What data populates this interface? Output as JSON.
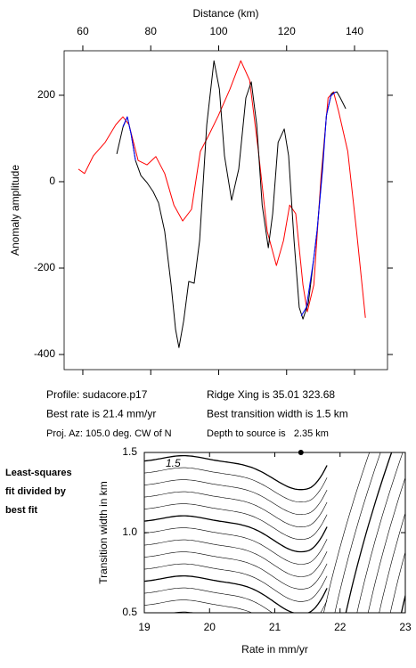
{
  "chart_data": [
    {
      "type": "line",
      "x_label": "Distance (km)",
      "y_label": "Anomaly amplitude",
      "xlim": [
        54.5,
        149.7
      ],
      "ylim": [
        -435,
        303
      ],
      "xticks": [
        60,
        80,
        100,
        120,
        140
      ],
      "yticks": [
        -400,
        -200,
        0,
        200
      ],
      "series": [
        {
          "color": "#ff0000",
          "x": [
            58.7,
            60.5,
            63.1,
            66.6,
            69.7,
            71.8,
            73.6,
            76.3,
            78.9,
            81.5,
            84.1,
            86.8,
            89.4,
            92.0,
            94.6,
            97.3,
            99.9,
            103.3,
            106.5,
            109.1,
            111.7,
            114.3,
            117.0,
            119.1,
            120.9,
            122.7,
            124.8,
            126.1,
            128.0,
            130.1,
            132.2,
            133.8,
            135.3,
            138.0,
            140.6,
            143.2
          ],
          "values": [
            29,
            19,
            60,
            91,
            132,
            150,
            132,
            49,
            39,
            58,
            19,
            -54,
            -91,
            -64,
            70,
            111,
            153,
            214,
            280,
            235,
            70,
            -115,
            -194,
            -136,
            -54,
            -74,
            -239,
            -301,
            -239,
            8,
            194,
            208,
            163,
            70,
            -115,
            -315
          ]
        },
        {
          "color": "#000000",
          "x": [
            70.0,
            71.8,
            73.1,
            74.2,
            75.5,
            77.1,
            78.9,
            80.7,
            82.3,
            84.1,
            86.0,
            87.3,
            88.3,
            89.7,
            91.2,
            92.8,
            94.4,
            96.5,
            98.6,
            100.2,
            101.7,
            103.8,
            105.9,
            108.0,
            109.6,
            111.2,
            112.8,
            114.6,
            115.9,
            117.5,
            119.3,
            120.6,
            122.2,
            123.7,
            124.8,
            126.4,
            128.0,
            129.0,
            130.3,
            131.7,
            133.2,
            134.8,
            135.8,
            137.4
          ],
          "values": [
            64,
            126,
            150,
            111,
            49,
            14,
            -2,
            -23,
            -49,
            -115,
            -239,
            -342,
            -384,
            -322,
            -231,
            -235,
            -136,
            132,
            280,
            214,
            60,
            -43,
            29,
            194,
            231,
            132,
            -54,
            -153,
            -74,
            91,
            122,
            60,
            -136,
            -291,
            -318,
            -280,
            -177,
            -111,
            8,
            153,
            204,
            208,
            194,
            169
          ]
        },
        {
          "color": "#0000ff",
          "x": [
            71.8,
            73.1,
            74.2,
            75.5,
            100,
            124.3,
            125.8,
            128.0,
            129.0,
            130.6,
            131.7,
            133.0,
            134.4
          ],
          "values": [
            128,
            150,
            111,
            49,
            null,
            -311,
            -291,
            -177,
            -111,
            29,
            153,
            198,
            208
          ]
        }
      ]
    },
    {
      "type": "contour",
      "x_label": "Rate in mm/yr",
      "y_label": "Transition width in km",
      "xlim": [
        19,
        23
      ],
      "ylim": [
        0.5,
        1.5
      ],
      "xticks": [
        19,
        20,
        21,
        22,
        23
      ],
      "yticks": [
        {
          "value": 0.5,
          "label": "0.5"
        },
        {
          "value": 1,
          "label": "1.0"
        },
        {
          "value": 1.5,
          "label": "1.5"
        }
      ],
      "contour_label": "1.5",
      "best": {
        "x": 21.4,
        "y": 1.5
      }
    }
  ],
  "info": {
    "left": [
      "Profile: sudacore.p17",
      "Best rate is 21.4 mm/yr",
      "Proj. Az: 105.0 deg. CW of N"
    ],
    "right": [
      "Ridge Xing is 35.01 323.68",
      "Best transition width is 1.5 km",
      "Depth to source is   2.35 km"
    ]
  },
  "side_label": [
    "Least-squares",
    "fit divided by",
    "best fit"
  ]
}
